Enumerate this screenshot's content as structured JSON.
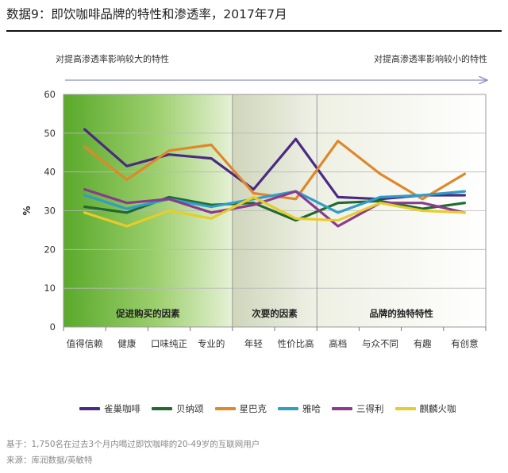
{
  "title": "数据9：即饮咖啡品牌的特性和渗透率，2017年7月",
  "impact_labels": {
    "high": "对提高渗透率影响较大的特性",
    "low": "对提高渗透率影响较小的特性"
  },
  "notes": {
    "base": "基于：1,750名在过去3个月内喝过即饮咖啡的20-49岁的互联网用户",
    "source": "来源：库润数据/英敏特"
  },
  "chart_data": {
    "type": "line",
    "ylabel": "%",
    "ylim": [
      0,
      60
    ],
    "yticks": [
      0,
      10,
      20,
      30,
      40,
      50,
      60
    ],
    "grid": true,
    "legend_position": "bottom",
    "categories": [
      "值得信赖",
      "健康",
      "口味纯正",
      "专业的",
      "年轻",
      "性价比高",
      "高档",
      "与众不同",
      "有趣",
      "有创意"
    ],
    "sections": [
      {
        "label": "促进购买的因素",
        "from": 0,
        "to": 3,
        "color": "#6ab33a"
      },
      {
        "label": "次要的因素",
        "from": 4,
        "to": 5,
        "color": "#d6dbc8"
      },
      {
        "label": "品牌的独特特性",
        "from": 6,
        "to": 9,
        "color": "#f3f4ec"
      }
    ],
    "series": [
      {
        "name": "雀巢咖啡",
        "color": "#4b2a84",
        "values": [
          51,
          41.5,
          44.5,
          43.5,
          35.5,
          48.5,
          33.5,
          33,
          34,
          34
        ]
      },
      {
        "name": "贝纳颂",
        "color": "#1f6a2e",
        "values": [
          31,
          29.5,
          33.5,
          31.5,
          32,
          27.5,
          32,
          32.5,
          30.5,
          32
        ]
      },
      {
        "name": "星巴克",
        "color": "#e0872a",
        "values": [
          46.5,
          38,
          45.5,
          47,
          34.5,
          33,
          48,
          39.5,
          33,
          39.5
        ]
      },
      {
        "name": "雅哈",
        "color": "#2f9dc8",
        "values": [
          34,
          30.5,
          33,
          31,
          33,
          35,
          29.5,
          33.5,
          34,
          35
        ]
      },
      {
        "name": "三得利",
        "color": "#8a3b8f",
        "values": [
          35.5,
          32,
          33,
          29.5,
          31.5,
          35,
          26,
          32,
          32,
          29.5
        ]
      },
      {
        "name": "麒麟火咖",
        "color": "#e8cc2a",
        "values": [
          29.5,
          26,
          30,
          28,
          33.5,
          28,
          27.5,
          32,
          30,
          29.5
        ]
      }
    ]
  }
}
